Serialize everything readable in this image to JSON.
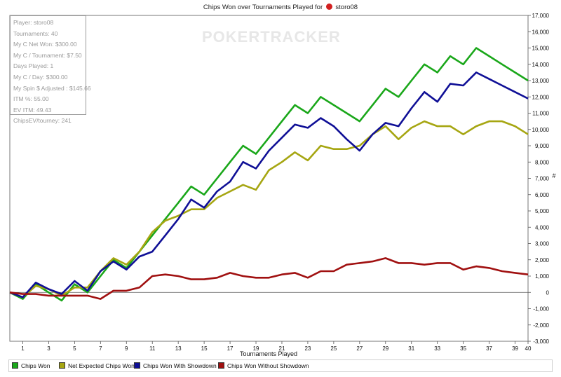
{
  "title": "Chips Won over Tournaments Played for",
  "player_name": "storo08",
  "icon": "pokerstars-icon",
  "watermark": "POKERTRACKER",
  "stats": [
    "Player: storo08",
    "Tournaments: 40",
    "My C Net Won: $300.00",
    "My C / Tournament: $7.50",
    "Days Played: 1",
    "My C / Day: $300.00",
    "My Spin $ Adjusted : $145.66",
    "ITM %: 55.00",
    "EV ITM: 49.43",
    "ChipsEV/tourney: 241"
  ],
  "chart_data": {
    "type": "line",
    "title": "Chips Won over Tournaments Played for storo08",
    "xlabel": "Tournaments Played",
    "ylabel": "#",
    "xlim": [
      0,
      40
    ],
    "ylim": [
      -3000,
      17000
    ],
    "x_ticks": [
      1,
      3,
      5,
      7,
      9,
      11,
      13,
      15,
      17,
      19,
      21,
      23,
      25,
      27,
      29,
      31,
      33,
      35,
      37,
      39,
      40
    ],
    "y_ticks": [
      "-3,000",
      "-2,000",
      "-1,000",
      "0",
      "1,000",
      "2,000",
      "3,000",
      "4,000",
      "5,000",
      "6,000",
      "7,000",
      "8,000",
      "9,000",
      "10,000",
      "11,000",
      "12,000",
      "13,000",
      "14,000",
      "15,000",
      "16,000",
      "17,000"
    ],
    "y_tick_values": [
      -3000,
      -2000,
      -1000,
      0,
      1000,
      2000,
      3000,
      4000,
      5000,
      6000,
      7000,
      8000,
      9000,
      10000,
      11000,
      12000,
      13000,
      14000,
      15000,
      16000,
      17000
    ],
    "grid": false,
    "legend_position": "bottom",
    "x": [
      0,
      1,
      2,
      3,
      4,
      5,
      6,
      7,
      8,
      9,
      10,
      11,
      12,
      13,
      14,
      15,
      16,
      17,
      18,
      19,
      20,
      21,
      22,
      23,
      24,
      25,
      26,
      27,
      28,
      29,
      30,
      31,
      32,
      33,
      34,
      35,
      36,
      37,
      38,
      39,
      40
    ],
    "series": [
      {
        "name": "Chips Won",
        "color": "#1aa71a",
        "values": [
          0,
          -400,
          500,
          0,
          -500,
          500,
          0,
          1000,
          2000,
          1500,
          2500,
          3500,
          4500,
          5500,
          6500,
          6000,
          7000,
          8000,
          9000,
          8500,
          9500,
          10500,
          11500,
          11000,
          12000,
          11500,
          11000,
          10500,
          11500,
          12500,
          12000,
          13000,
          14000,
          13500,
          14500,
          14000,
          15000,
          14500,
          14000,
          13500,
          13000
        ]
      },
      {
        "name": "Net Expected Chips Won",
        "color": "#a6a612",
        "values": [
          0,
          -300,
          400,
          200,
          -200,
          300,
          300,
          1300,
          2100,
          1700,
          2500,
          3700,
          4400,
          4700,
          5100,
          5100,
          5800,
          6200,
          6600,
          6300,
          7500,
          8000,
          8600,
          8100,
          9000,
          8800,
          8800,
          9000,
          9700,
          10200,
          9400,
          10100,
          10500,
          10200,
          10200,
          9700,
          10200,
          10500,
          10500,
          10200,
          9700
        ]
      },
      {
        "name": "Chips Won With Showdown",
        "color": "#0f0f96",
        "values": [
          0,
          -300,
          600,
          200,
          -100,
          700,
          100,
          1300,
          1900,
          1400,
          2200,
          2500,
          3500,
          4500,
          5700,
          5200,
          6200,
          6800,
          8000,
          7600,
          8700,
          9500,
          10300,
          10100,
          10700,
          10200,
          9400,
          8700,
          9700,
          10400,
          10200,
          11300,
          12300,
          11700,
          12800,
          12700,
          13500,
          13100,
          12700,
          12300,
          11900
        ]
      },
      {
        "name": "Chips Won Without Showdown",
        "color": "#a01010",
        "values": [
          0,
          -100,
          -100,
          -200,
          -200,
          -200,
          -200,
          -400,
          100,
          100,
          300,
          1000,
          1100,
          1000,
          800,
          800,
          900,
          1200,
          1000,
          900,
          900,
          1100,
          1200,
          900,
          1300,
          1300,
          1700,
          1800,
          1900,
          2100,
          1800,
          1800,
          1700,
          1800,
          1800,
          1400,
          1600,
          1500,
          1300,
          1200,
          1100
        ]
      }
    ]
  }
}
